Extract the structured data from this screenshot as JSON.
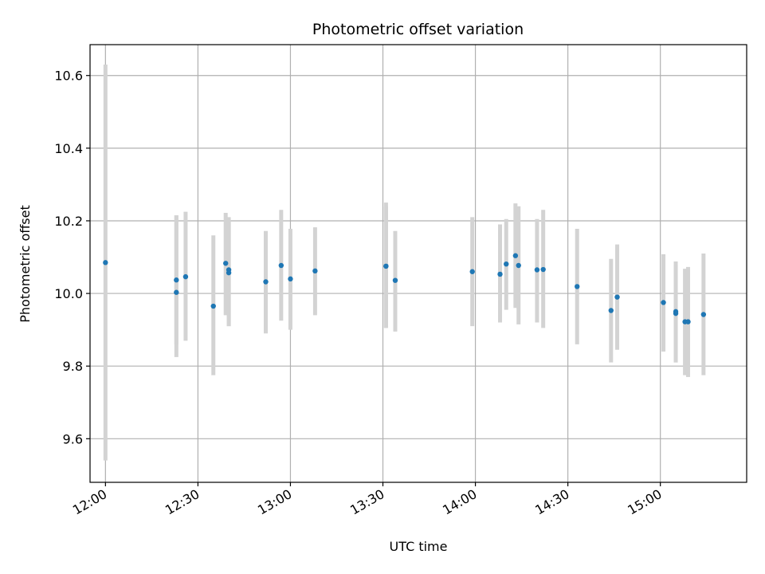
{
  "chart_data": {
    "type": "scatter",
    "title": "Photometric offset variation",
    "xlabel": "UTC time",
    "ylabel": "Photometric offset",
    "x_time_domain": [
      "11:55",
      "15:28"
    ],
    "ylim": [
      9.48,
      10.685
    ],
    "x_ticks": [
      "12:00",
      "12:30",
      "13:00",
      "13:30",
      "14:00",
      "14:30",
      "15:00"
    ],
    "y_ticks": [
      9.6,
      9.8,
      10.0,
      10.2,
      10.4,
      10.6
    ],
    "y_tick_labels": [
      "9.6",
      "9.8",
      "10.0",
      "10.2",
      "10.4",
      "10.6"
    ],
    "grid": true,
    "colors": {
      "point": "#1f77b4",
      "errorbar": "#d3d3d3",
      "grid": "#b0b0b0"
    },
    "series": [
      {
        "points": [
          {
            "x": "12:00",
            "y": 10.085,
            "lo": 9.54,
            "hi": 10.63
          },
          {
            "x": "12:23",
            "y": 10.003,
            "lo": 9.825,
            "hi": 10.215
          },
          {
            "x": "12:23",
            "y": 10.037,
            "lo": 9.86,
            "hi": 10.215
          },
          {
            "x": "12:26",
            "y": 10.046,
            "lo": 9.87,
            "hi": 10.225
          },
          {
            "x": "12:35",
            "y": 9.965,
            "lo": 9.775,
            "hi": 10.16
          },
          {
            "x": "12:39",
            "y": 10.083,
            "lo": 9.94,
            "hi": 10.222
          },
          {
            "x": "12:40",
            "y": 10.065,
            "lo": 9.91,
            "hi": 10.21
          },
          {
            "x": "12:40",
            "y": 10.057,
            "lo": 9.91,
            "hi": 10.2
          },
          {
            "x": "12:52",
            "y": 10.032,
            "lo": 9.89,
            "hi": 10.172
          },
          {
            "x": "12:57",
            "y": 10.077,
            "lo": 9.925,
            "hi": 10.23
          },
          {
            "x": "13:00",
            "y": 10.04,
            "lo": 9.9,
            "hi": 10.178
          },
          {
            "x": "13:08",
            "y": 10.062,
            "lo": 9.94,
            "hi": 10.182
          },
          {
            "x": "13:31",
            "y": 10.075,
            "lo": 9.905,
            "hi": 10.25
          },
          {
            "x": "13:31",
            "y": 10.075,
            "lo": 9.905,
            "hi": 10.24
          },
          {
            "x": "13:34",
            "y": 10.036,
            "lo": 9.895,
            "hi": 10.172
          },
          {
            "x": "13:59",
            "y": 10.06,
            "lo": 9.91,
            "hi": 10.21
          },
          {
            "x": "14:08",
            "y": 10.053,
            "lo": 9.92,
            "hi": 10.19
          },
          {
            "x": "14:10",
            "y": 10.081,
            "lo": 9.955,
            "hi": 10.205
          },
          {
            "x": "14:13",
            "y": 10.104,
            "lo": 9.96,
            "hi": 10.248
          },
          {
            "x": "14:14",
            "y": 10.077,
            "lo": 9.915,
            "hi": 10.24
          },
          {
            "x": "14:20",
            "y": 10.065,
            "lo": 9.92,
            "hi": 10.205
          },
          {
            "x": "14:22",
            "y": 10.066,
            "lo": 9.905,
            "hi": 10.23
          },
          {
            "x": "14:33",
            "y": 10.019,
            "lo": 9.86,
            "hi": 10.178
          },
          {
            "x": "14:44",
            "y": 9.953,
            "lo": 9.81,
            "hi": 10.095
          },
          {
            "x": "14:46",
            "y": 9.99,
            "lo": 9.845,
            "hi": 10.135
          },
          {
            "x": "15:01",
            "y": 9.975,
            "lo": 9.84,
            "hi": 10.108
          },
          {
            "x": "15:05",
            "y": 9.95,
            "lo": 9.81,
            "hi": 10.088
          },
          {
            "x": "15:05",
            "y": 9.945,
            "lo": 9.81,
            "hi": 10.08
          },
          {
            "x": "15:08",
            "y": 9.922,
            "lo": 9.775,
            "hi": 10.068
          },
          {
            "x": "15:09",
            "y": 9.922,
            "lo": 9.77,
            "hi": 10.073
          },
          {
            "x": "15:14",
            "y": 9.942,
            "lo": 9.775,
            "hi": 10.11
          }
        ]
      }
    ]
  }
}
